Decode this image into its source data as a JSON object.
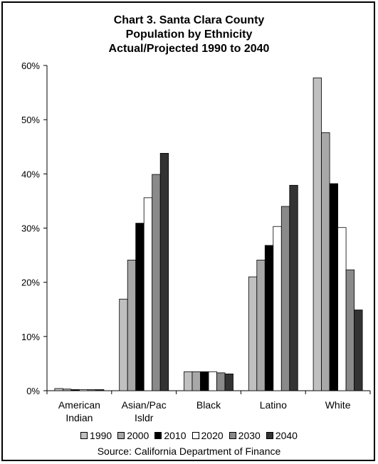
{
  "chart_data": {
    "type": "bar",
    "title_lines": [
      "Chart 3. Santa Clara County",
      "Population by Ethnicity",
      "Actual/Projected 1990 to 2040"
    ],
    "categories": [
      [
        "American",
        "Indian"
      ],
      [
        "Asian/Pac",
        "Isldr"
      ],
      [
        "Black"
      ],
      [
        "Latino"
      ],
      [
        "White"
      ]
    ],
    "series": [
      {
        "name": "1990",
        "color": "#c0c0c0",
        "values": [
          0.4,
          16.9,
          3.5,
          21.0,
          57.7
        ]
      },
      {
        "name": "2000",
        "color": "#a8a8a8",
        "values": [
          0.3,
          24.1,
          3.5,
          24.1,
          47.6
        ]
      },
      {
        "name": "2010",
        "color": "#000000",
        "values": [
          0.2,
          30.9,
          3.5,
          26.8,
          38.2
        ]
      },
      {
        "name": "2020",
        "color": "#ffffff",
        "values": [
          0.2,
          35.6,
          3.5,
          30.3,
          30.1
        ]
      },
      {
        "name": "2030",
        "color": "#8a8a8a",
        "values": [
          0.2,
          39.9,
          3.3,
          34.0,
          22.3
        ]
      },
      {
        "name": "2040",
        "color": "#333333",
        "values": [
          0.2,
          43.8,
          3.1,
          37.9,
          14.9
        ]
      }
    ],
    "ylim": [
      0,
      60
    ],
    "yticks": [
      "0%",
      "10%",
      "20%",
      "30%",
      "40%",
      "50%",
      "60%"
    ],
    "legend_position": "bottom",
    "grid": false
  },
  "source": "Source: California Department of Finance"
}
